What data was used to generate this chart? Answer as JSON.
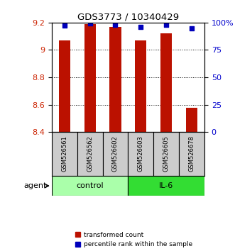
{
  "title": "GDS3773 / 10340429",
  "samples": [
    "GSM526561",
    "GSM526562",
    "GSM526602",
    "GSM526603",
    "GSM526605",
    "GSM526678"
  ],
  "red_values": [
    9.07,
    9.19,
    9.17,
    9.07,
    9.12,
    8.58
  ],
  "blue_values": [
    97,
    99,
    98,
    96,
    98,
    95
  ],
  "ymin": 8.4,
  "ymax": 9.2,
  "yticks": [
    8.4,
    8.6,
    8.8,
    9.0,
    9.2
  ],
  "ytick_labels": [
    "8.4",
    "8.6",
    "8.8",
    "9",
    "9.2"
  ],
  "y2min": 0,
  "y2max": 100,
  "y2ticks": [
    0,
    25,
    50,
    75,
    100
  ],
  "y2ticklabels": [
    "0",
    "25",
    "50",
    "75",
    "100%"
  ],
  "groups": [
    {
      "label": "control",
      "indices": [
        0,
        1,
        2
      ],
      "color": "#aaffaa"
    },
    {
      "label": "IL-6",
      "indices": [
        3,
        4,
        5
      ],
      "color": "#33dd33"
    }
  ],
  "agent_label": "agent",
  "bar_color": "#bb1100",
  "dot_color": "#0000bb",
  "bar_width": 0.45,
  "dot_size": 25,
  "legend_bar_label": "transformed count",
  "legend_dot_label": "percentile rank within the sample",
  "left_color": "#cc2200",
  "right_color": "#0000cc",
  "title_color": "#000000",
  "bg_color": "#ffffff",
  "sample_box_color": "#cccccc"
}
